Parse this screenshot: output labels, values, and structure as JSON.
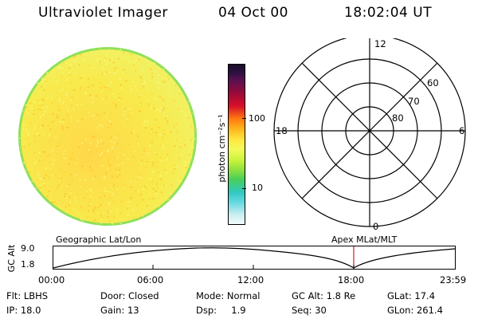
{
  "header": {
    "title": "Ultraviolet Imager",
    "date": "04 Oct 00",
    "time": "18:02:04 UT"
  },
  "colorbar": {
    "unit_label": "photon cm⁻²s⁻¹",
    "ticks": [
      "100",
      "10"
    ]
  },
  "polar": {
    "mlt_labels": {
      "top": "12",
      "right": "6",
      "bottom": "0",
      "left": "18"
    },
    "lat_labels": [
      "60",
      "70",
      "80"
    ]
  },
  "orbit": {
    "ylabel": "GC Alt",
    "yticks": [
      "9.0",
      "1.8"
    ],
    "left_caption": "Geographic Lat/Lon",
    "right_caption": "Apex MLat/MLT",
    "xticks": [
      "00:00",
      "06:00",
      "12:00",
      "18:00",
      "23:59"
    ]
  },
  "info": [
    [
      "Flt: LBHS",
      "Door: Closed",
      "Mode: Normal",
      "GC Alt: 1.8 Re",
      "GLat: 17.4"
    ],
    [
      "IP: 18.0",
      "Gain: 13",
      "Dsp:     1.9",
      "Seq: 30",
      "GLon: 261.4"
    ]
  ],
  "colors": {
    "disk_base": "#f6ec48",
    "disk_speckle_a": "#ffd233",
    "disk_speckle_b": "#f4fb6a",
    "disk_edge": "#8ee05a",
    "marker": "#cc2222"
  }
}
